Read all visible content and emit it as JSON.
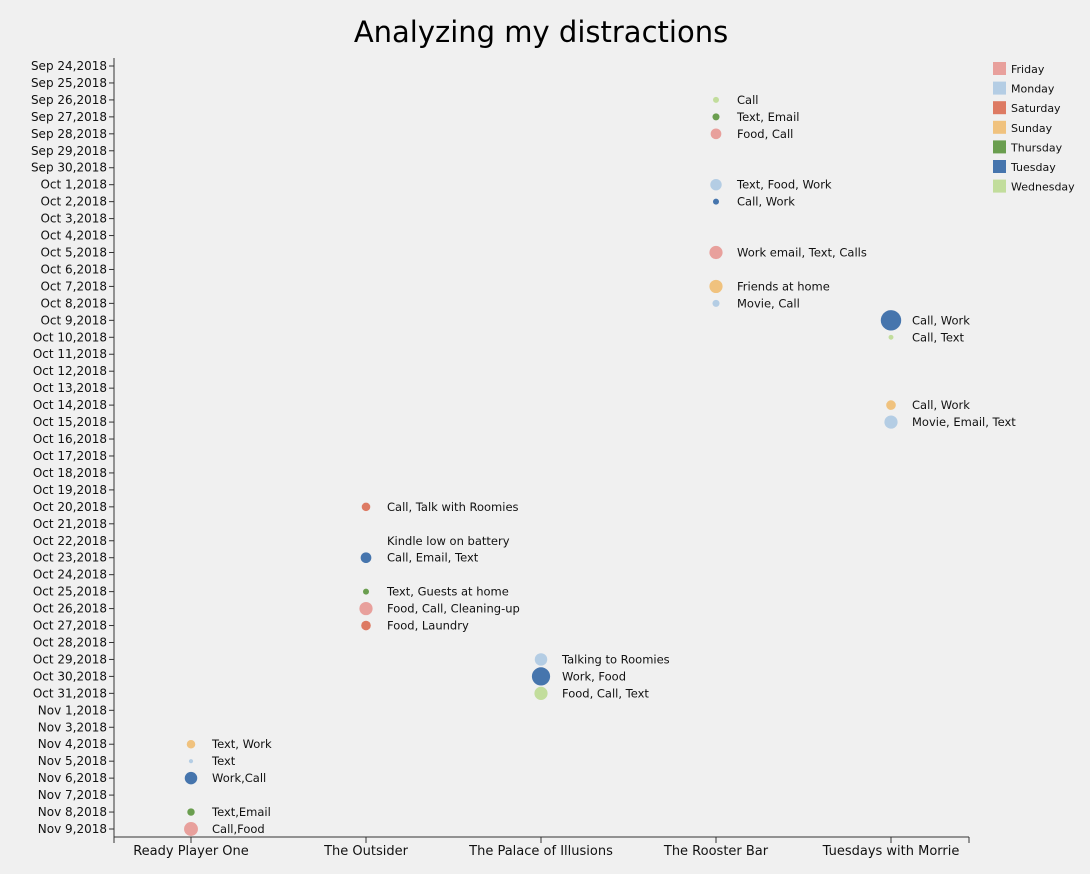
{
  "chart_data": {
    "type": "scatter",
    "title": "Analyzing my distractions",
    "x_categories": [
      "Ready Player One",
      "The Outsider",
      "The Palace of Illusions",
      "The Rooster Bar",
      "Tuesdays with Morrie"
    ],
    "y_dates": [
      "Sep 24,2018",
      "Sep 25,2018",
      "Sep 26,2018",
      "Sep 27,2018",
      "Sep 28,2018",
      "Sep 29,2018",
      "Sep 30,2018",
      "Oct 1,2018",
      "Oct 2,2018",
      "Oct 3,2018",
      "Oct 4,2018",
      "Oct 5,2018",
      "Oct 6,2018",
      "Oct 7,2018",
      "Oct 8,2018",
      "Oct 9,2018",
      "Oct 10,2018",
      "Oct 11,2018",
      "Oct 12,2018",
      "Oct 13,2018",
      "Oct 14,2018",
      "Oct 15,2018",
      "Oct 16,2018",
      "Oct 17,2018",
      "Oct 18,2018",
      "Oct 19,2018",
      "Oct 20,2018",
      "Oct 21,2018",
      "Oct 22,2018",
      "Oct 23,2018",
      "Oct 24,2018",
      "Oct 25,2018",
      "Oct 26,2018",
      "Oct 27,2018",
      "Oct 28,2018",
      "Oct 29,2018",
      "Oct 30,2018",
      "Oct 31,2018",
      "Nov 1,2018",
      "Nov 3,2018",
      "Nov 4,2018",
      "Nov 5,2018",
      "Nov 6,2018",
      "Nov 7,2018",
      "Nov 8,2018",
      "Nov 9,2018"
    ],
    "legend": [
      {
        "day": "Friday",
        "color": "#e8a09c"
      },
      {
        "day": "Monday",
        "color": "#b4cde4"
      },
      {
        "day": "Saturday",
        "color": "#dd7a63"
      },
      {
        "day": "Sunday",
        "color": "#f0c27e"
      },
      {
        "day": "Thursday",
        "color": "#6a9e4f"
      },
      {
        "day": "Tuesday",
        "color": "#4675ad"
      },
      {
        "day": "Wednesday",
        "color": "#c2dd9c"
      }
    ],
    "points": [
      {
        "book": "The Rooster Bar",
        "date": "Sep 26,2018",
        "day": "Wednesday",
        "size": 1,
        "label": "Call"
      },
      {
        "book": "The Rooster Bar",
        "date": "Sep 27,2018",
        "day": "Thursday",
        "size": 1.3,
        "label": "Text, Email"
      },
      {
        "book": "The Rooster Bar",
        "date": "Sep 28,2018",
        "day": "Friday",
        "size": 2.3,
        "label": "Food, Call"
      },
      {
        "book": "The Rooster Bar",
        "date": "Oct 1,2018",
        "day": "Monday",
        "size": 2.5,
        "label": "Text, Food, Work"
      },
      {
        "book": "The Rooster Bar",
        "date": "Oct 2,2018",
        "day": "Tuesday",
        "size": 1,
        "label": "Call, Work"
      },
      {
        "book": "The Rooster Bar",
        "date": "Oct 5,2018",
        "day": "Friday",
        "size": 3,
        "label": "Work email, Text, Calls"
      },
      {
        "book": "The Rooster Bar",
        "date": "Oct 7,2018",
        "day": "Sunday",
        "size": 3,
        "label": "Friends at home"
      },
      {
        "book": "The Rooster Bar",
        "date": "Oct 8,2018",
        "day": "Monday",
        "size": 1.3,
        "label": "Movie, Call"
      },
      {
        "book": "Tuesdays with Morrie",
        "date": "Oct 9,2018",
        "day": "Tuesday",
        "size": 5,
        "label": "Call, Work"
      },
      {
        "book": "Tuesdays with Morrie",
        "date": "Oct 10,2018",
        "day": "Wednesday",
        "size": 0.7,
        "label": "Call, Text"
      },
      {
        "book": "Tuesdays with Morrie",
        "date": "Oct 14,2018",
        "day": "Sunday",
        "size": 2,
        "label": "Call, Work"
      },
      {
        "book": "Tuesdays with Morrie",
        "date": "Oct 15,2018",
        "day": "Monday",
        "size": 3,
        "label": "Movie, Email, Text"
      },
      {
        "book": "The Outsider",
        "date": "Oct 20,2018",
        "day": "Saturday",
        "size": 1.7,
        "label": "Call, Talk with Roomies"
      },
      {
        "book": "The Outsider",
        "date": "Oct 22,2018",
        "day": "",
        "size": 0,
        "label": "Kindle low on battery"
      },
      {
        "book": "The Outsider",
        "date": "Oct 23,2018",
        "day": "Tuesday",
        "size": 2.3,
        "label": "Call, Email, Text"
      },
      {
        "book": "The Outsider",
        "date": "Oct 25,2018",
        "day": "Thursday",
        "size": 1,
        "label": "Text, Guests at home"
      },
      {
        "book": "The Outsider",
        "date": "Oct 26,2018",
        "day": "Friday",
        "size": 3,
        "label": "Food, Call, Cleaning-up"
      },
      {
        "book": "The Outsider",
        "date": "Oct 27,2018",
        "day": "Saturday",
        "size": 2,
        "label": "Food, Laundry"
      },
      {
        "book": "The Palace of Illusions",
        "date": "Oct 29,2018",
        "day": "Monday",
        "size": 2.8,
        "label": "Talking to Roomies"
      },
      {
        "book": "The Palace of Illusions",
        "date": "Oct 30,2018",
        "day": "Tuesday",
        "size": 4.4,
        "label": "Work, Food"
      },
      {
        "book": "The Palace of Illusions",
        "date": "Oct 31,2018",
        "day": "Wednesday",
        "size": 3,
        "label": "Food, Call, Text"
      },
      {
        "book": "Ready Player One",
        "date": "Nov 4,2018",
        "day": "Sunday",
        "size": 1.7,
        "label": "Text, Work"
      },
      {
        "book": "Ready Player One",
        "date": "Nov 5,2018",
        "day": "Monday",
        "size": 0.5,
        "label": "Text"
      },
      {
        "book": "Ready Player One",
        "date": "Nov 6,2018",
        "day": "Tuesday",
        "size": 2.8,
        "label": "Work,Call"
      },
      {
        "book": "Ready Player One",
        "date": "Nov 8,2018",
        "day": "Thursday",
        "size": 1.4,
        "label": "Text,Email"
      },
      {
        "book": "Ready Player One",
        "date": "Nov 9,2018",
        "day": "Friday",
        "size": 3.2,
        "label": "Call,Food"
      }
    ]
  }
}
